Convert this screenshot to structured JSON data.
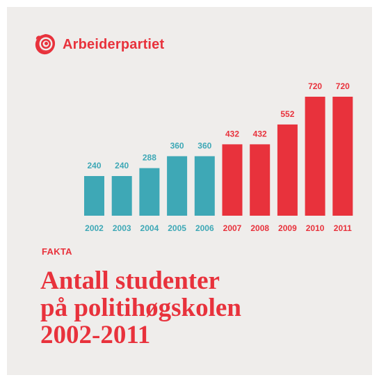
{
  "brand": {
    "name": "Arbeiderpartiet",
    "logo_icon": "rose-logo-icon"
  },
  "colors": {
    "background": "#efedeb",
    "accent_red": "#e8323c",
    "teal": "#3ea8b6"
  },
  "label": "FAKTA",
  "title": "Antall studenter\npå politihøgskolen\n2002-2011",
  "chart_data": {
    "type": "bar",
    "categories": [
      "2002",
      "2003",
      "2004",
      "2005",
      "2006",
      "2007",
      "2008",
      "2009",
      "2010",
      "2011"
    ],
    "values": [
      240,
      240,
      288,
      360,
      360,
      432,
      432,
      552,
      720,
      720
    ],
    "bar_colors": [
      "#3ea8b6",
      "#3ea8b6",
      "#3ea8b6",
      "#3ea8b6",
      "#3ea8b6",
      "#e8323c",
      "#e8323c",
      "#e8323c",
      "#e8323c",
      "#e8323c"
    ],
    "data_labels": [
      "240",
      "240",
      "288",
      "360",
      "360",
      "432",
      "432",
      "552",
      "720",
      "720"
    ],
    "ylim": [
      0,
      720
    ],
    "grid": false,
    "legend": "none"
  }
}
